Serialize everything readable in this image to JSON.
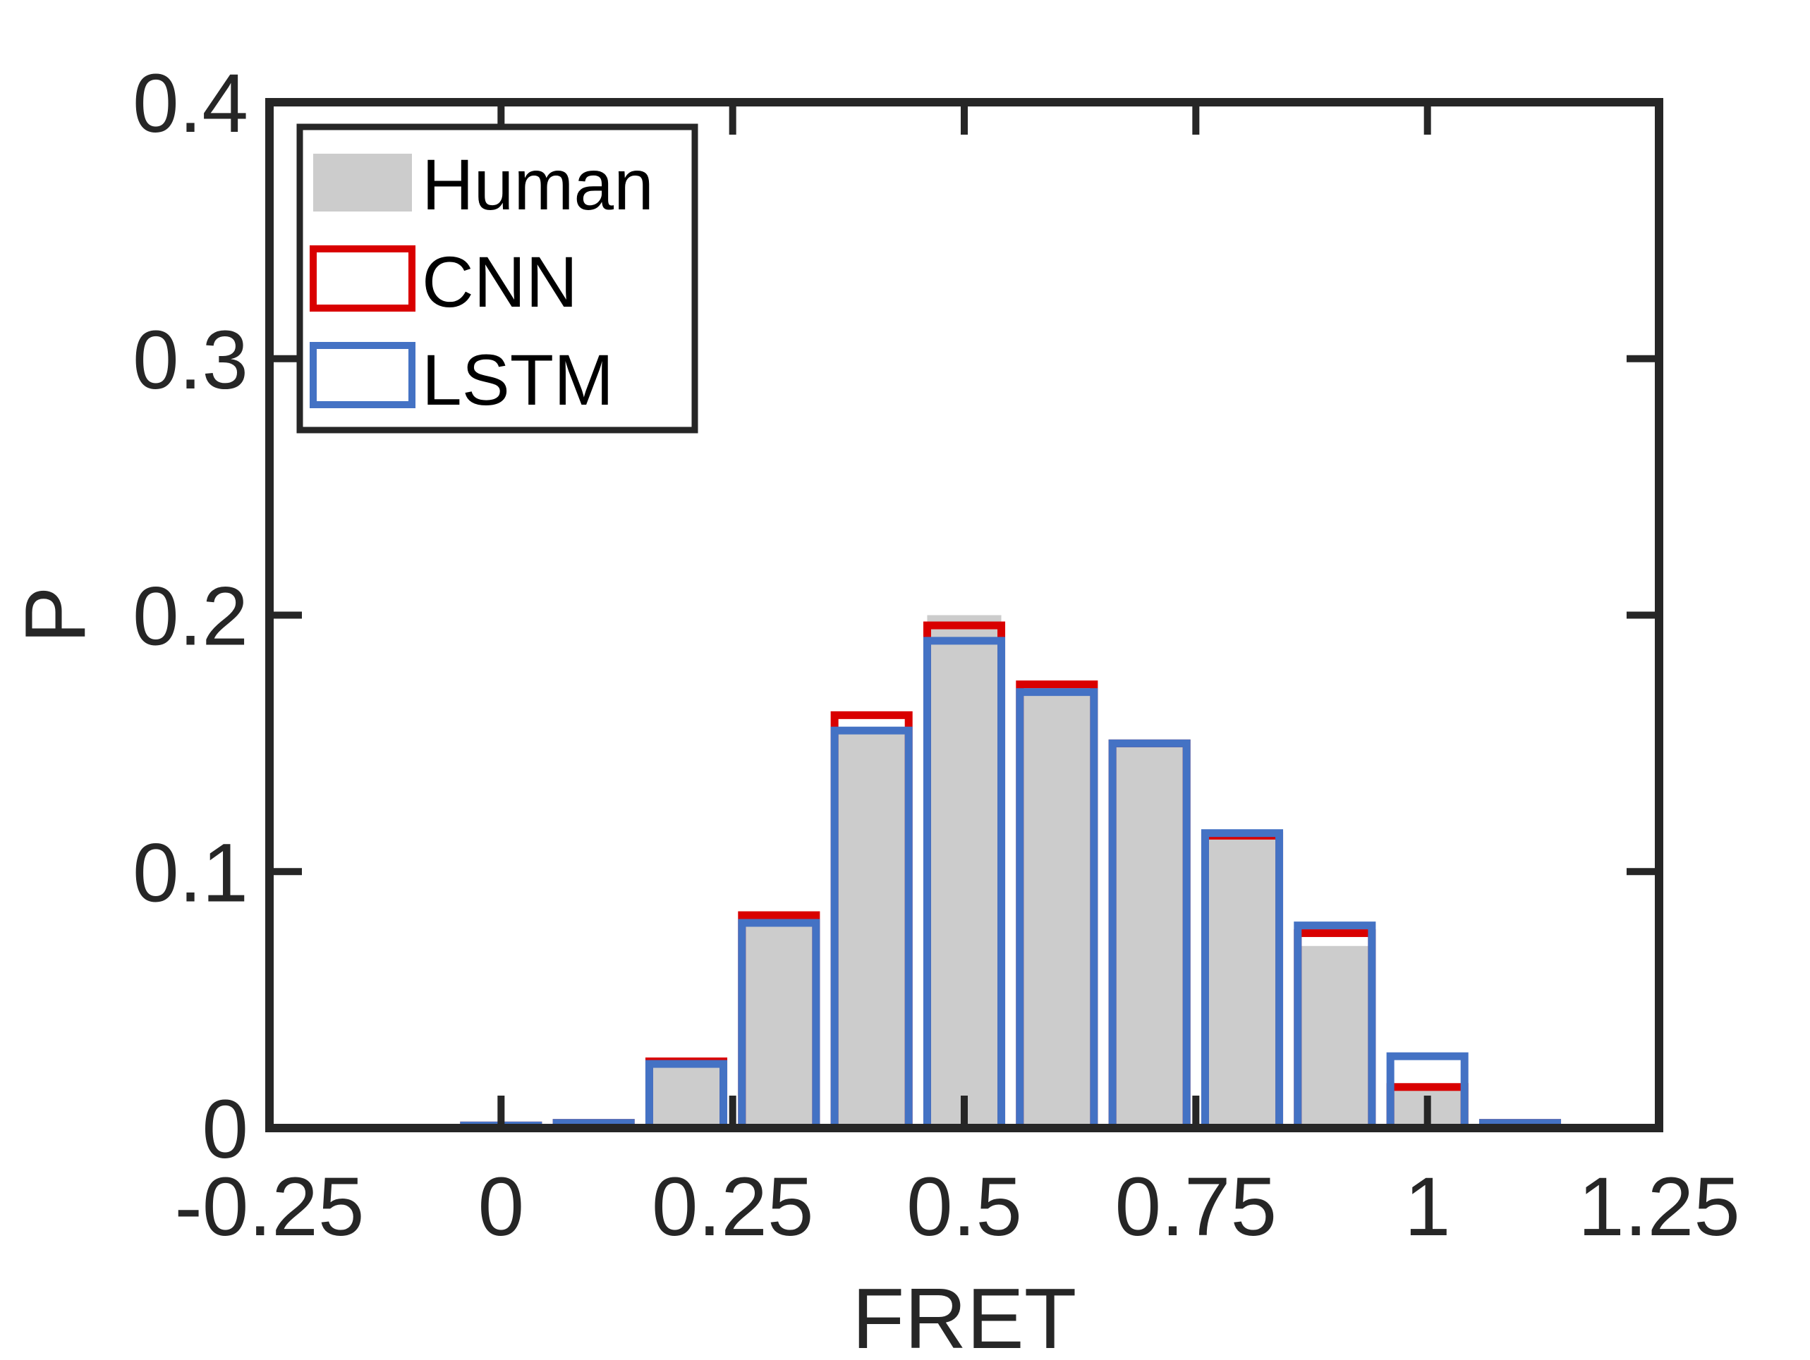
{
  "chart_data": {
    "type": "bar",
    "title": "",
    "xlabel": "FRET",
    "ylabel": "P",
    "xlim": [
      -0.25,
      1.25
    ],
    "ylim": [
      0,
      0.4
    ],
    "xticks": [
      -0.25,
      0,
      0.25,
      0.5,
      0.75,
      1,
      1.25
    ],
    "xtick_labels": [
      "-0.25",
      "0",
      "0.25",
      "0.5",
      "0.75",
      "1",
      "1.25"
    ],
    "yticks": [
      0,
      0.1,
      0.2,
      0.3,
      0.4
    ],
    "ytick_labels": [
      "0",
      "0.1",
      "0.2",
      "0.3",
      "0.4"
    ],
    "grid": false,
    "legend_position": "top-left",
    "bin_width": 0.1,
    "bin_centers": [
      -0.2,
      -0.1,
      0.0,
      0.1,
      0.2,
      0.3,
      0.4,
      0.5,
      0.6,
      0.7,
      0.8,
      0.9,
      1.0,
      1.1,
      1.2
    ],
    "series": [
      {
        "name": "Human",
        "style": "filled",
        "color": "#cccccc",
        "values": [
          0,
          0,
          0.001,
          0.002,
          0.025,
          0.079,
          0.155,
          0.2,
          0.17,
          0.15,
          0.114,
          0.071,
          0.015,
          0.002,
          0
        ]
      },
      {
        "name": "CNN",
        "style": "outline",
        "color": "#d90000",
        "values": [
          0,
          0,
          0.001,
          0.002,
          0.026,
          0.083,
          0.161,
          0.196,
          0.173,
          0.15,
          0.114,
          0.076,
          0.016,
          0.002,
          0
        ]
      },
      {
        "name": "LSTM",
        "style": "outline",
        "color": "#4472c4",
        "values": [
          0,
          0,
          0.001,
          0.002,
          0.025,
          0.08,
          0.155,
          0.19,
          0.17,
          0.15,
          0.115,
          0.079,
          0.028,
          0.002,
          0
        ]
      }
    ]
  },
  "colors": {
    "axes": "#262626",
    "human_fill": "#cccccc",
    "cnn": "#d90000",
    "lstm": "#4472c4"
  }
}
